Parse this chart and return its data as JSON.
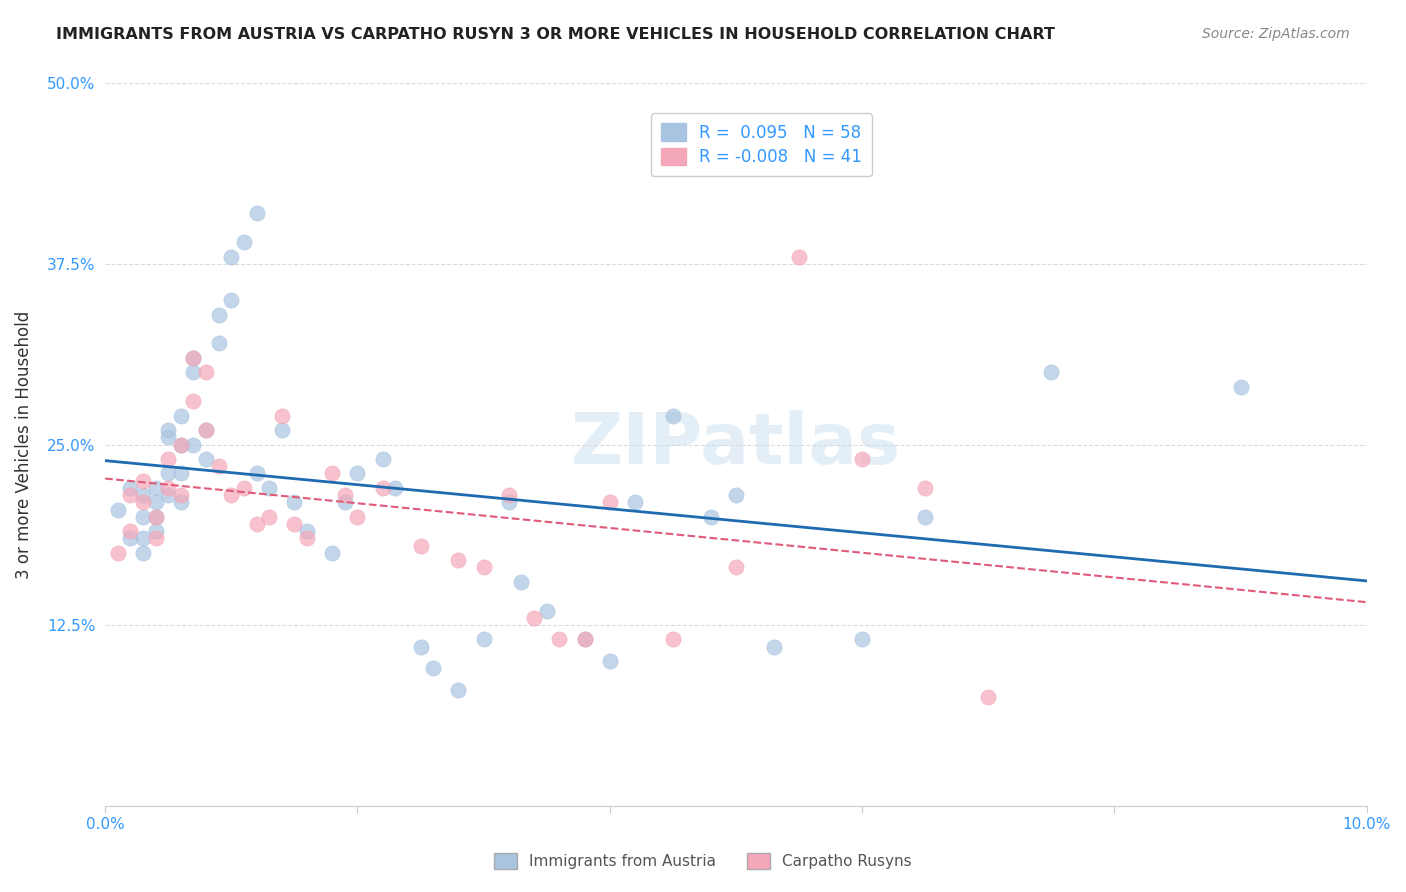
{
  "title": "IMMIGRANTS FROM AUSTRIA VS CARPATHO RUSYN 3 OR MORE VEHICLES IN HOUSEHOLD CORRELATION CHART",
  "source": "Source: ZipAtlas.com",
  "xlabel": "",
  "ylabel": "3 or more Vehicles in Household",
  "xlim": [
    0.0,
    0.1
  ],
  "ylim": [
    0.0,
    0.5
  ],
  "xticks": [
    0.0,
    0.02,
    0.04,
    0.06,
    0.08,
    0.1
  ],
  "xticklabels": [
    "0.0%",
    "",
    "",
    "",
    "",
    "10.0%"
  ],
  "yticks": [
    0.0,
    0.125,
    0.25,
    0.375,
    0.5
  ],
  "yticklabels": [
    "",
    "12.5%",
    "25.0%",
    "37.5%",
    "50.0%"
  ],
  "legend1_label": "Immigrants from Austria",
  "legend2_label": "Carpatho Rusyns",
  "r1": "0.095",
  "n1": "58",
  "r2": "-0.008",
  "n2": "41",
  "color_blue": "#a8c4e0",
  "color_pink": "#f4a7b9",
  "line_blue": "#1f6bb0",
  "line_pink": "#e05a7a",
  "watermark": "ZIPatlas",
  "blue_x": [
    0.001,
    0.002,
    0.002,
    0.003,
    0.003,
    0.003,
    0.003,
    0.004,
    0.004,
    0.004,
    0.004,
    0.005,
    0.005,
    0.005,
    0.005,
    0.006,
    0.006,
    0.006,
    0.006,
    0.007,
    0.007,
    0.007,
    0.008,
    0.008,
    0.009,
    0.009,
    0.01,
    0.01,
    0.011,
    0.012,
    0.012,
    0.013,
    0.014,
    0.015,
    0.016,
    0.018,
    0.019,
    0.02,
    0.022,
    0.023,
    0.025,
    0.026,
    0.028,
    0.03,
    0.032,
    0.033,
    0.035,
    0.038,
    0.04,
    0.042,
    0.045,
    0.048,
    0.05,
    0.053,
    0.06,
    0.065,
    0.075,
    0.09
  ],
  "blue_y": [
    0.205,
    0.185,
    0.22,
    0.2,
    0.215,
    0.185,
    0.175,
    0.22,
    0.21,
    0.2,
    0.19,
    0.23,
    0.215,
    0.255,
    0.26,
    0.21,
    0.23,
    0.25,
    0.27,
    0.3,
    0.31,
    0.25,
    0.24,
    0.26,
    0.32,
    0.34,
    0.35,
    0.38,
    0.39,
    0.41,
    0.23,
    0.22,
    0.26,
    0.21,
    0.19,
    0.175,
    0.21,
    0.23,
    0.24,
    0.22,
    0.11,
    0.095,
    0.08,
    0.115,
    0.21,
    0.155,
    0.135,
    0.115,
    0.1,
    0.21,
    0.27,
    0.2,
    0.215,
    0.11,
    0.115,
    0.2,
    0.3,
    0.29
  ],
  "pink_x": [
    0.001,
    0.002,
    0.002,
    0.003,
    0.003,
    0.004,
    0.004,
    0.005,
    0.005,
    0.006,
    0.006,
    0.007,
    0.007,
    0.008,
    0.008,
    0.009,
    0.01,
    0.011,
    0.012,
    0.013,
    0.014,
    0.015,
    0.016,
    0.018,
    0.019,
    0.02,
    0.022,
    0.025,
    0.028,
    0.03,
    0.032,
    0.034,
    0.036,
    0.038,
    0.04,
    0.045,
    0.05,
    0.055,
    0.06,
    0.065,
    0.07
  ],
  "pink_y": [
    0.175,
    0.215,
    0.19,
    0.21,
    0.225,
    0.2,
    0.185,
    0.24,
    0.22,
    0.215,
    0.25,
    0.31,
    0.28,
    0.3,
    0.26,
    0.235,
    0.215,
    0.22,
    0.195,
    0.2,
    0.27,
    0.195,
    0.185,
    0.23,
    0.215,
    0.2,
    0.22,
    0.18,
    0.17,
    0.165,
    0.215,
    0.13,
    0.115,
    0.115,
    0.21,
    0.115,
    0.165,
    0.38,
    0.24,
    0.22,
    0.075
  ]
}
